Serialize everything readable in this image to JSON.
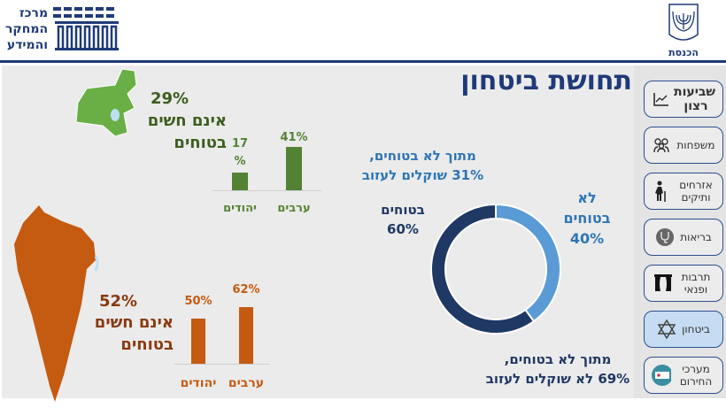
{
  "header": {
    "center_logo_text": [
      "מרכז",
      "המחקר",
      "והמידע"
    ],
    "knesset_label": "הכנסת"
  },
  "page_title": "תחושת ביטחון",
  "sidebar": {
    "items": [
      {
        "label": "שביעות רצון",
        "icon": "line-chart-icon",
        "active": false
      },
      {
        "label": "משפחות",
        "icon": "family-icon",
        "active": false
      },
      {
        "label": "אזרחים ותיקים",
        "icon": "elderly-person-icon",
        "active": false
      },
      {
        "label": "בריאות",
        "icon": "stethoscope-icon",
        "active": false
      },
      {
        "label": "תרבות ופנאי",
        "icon": "theater-curtain-icon",
        "active": false
      },
      {
        "label": "ביטחון",
        "icon": "star-of-david-icon",
        "active": true
      },
      {
        "label": "מערכי החירום",
        "icon": "ambulance-icon",
        "active": false
      }
    ]
  },
  "north": {
    "percent": "29%",
    "text1": "אינם חשים",
    "text2": "בטוחים",
    "color": "#548235"
  },
  "south": {
    "percent": "52%",
    "text1": "אינם חשים",
    "text2": "בטוחים",
    "color": "#c55a11"
  },
  "donut": {
    "safe_label": "בטוחים",
    "safe_value": "60%",
    "unsafe_label1": "לא",
    "unsafe_label2": "בטוחים",
    "unsafe_value": "40%",
    "note_top1": "מתוך לא בטוחים,",
    "note_top2": "31% שוקלים לעזוב",
    "note_bottom1": "מתוך לא בטוחים,",
    "note_bottom2": "69% לא שוקלים לעזוב",
    "safe_color": "#1f3864",
    "unsafe_color": "#5b9bd5"
  },
  "chart_data": [
    {
      "type": "pie",
      "categories": [
        "בטוחים",
        "לא בטוחים"
      ],
      "values": [
        60,
        40
      ],
      "colors": [
        "#1f3864",
        "#5b9bd5"
      ]
    },
    {
      "type": "bar",
      "categories": [
        "ערבים",
        "יהודים"
      ],
      "values": [
        41,
        17
      ],
      "labels": [
        "41%",
        "17 %"
      ],
      "color": "#548235"
    },
    {
      "type": "bar",
      "categories": [
        "ערבים",
        "יהודים"
      ],
      "values": [
        62,
        50
      ],
      "labels": [
        "62%",
        "50%"
      ],
      "color": "#c55a11"
    }
  ]
}
